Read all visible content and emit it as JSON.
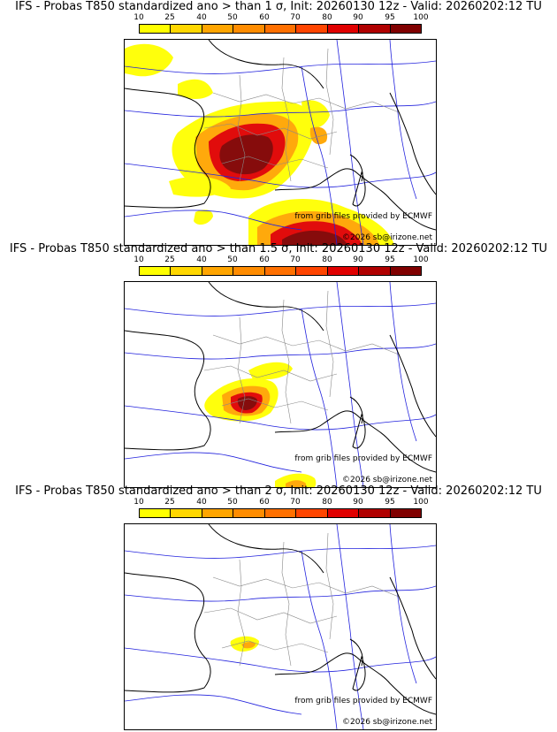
{
  "colorbar": {
    "ticks": [
      "10",
      "25",
      "40",
      "50",
      "60",
      "70",
      "80",
      "90",
      "95",
      "100"
    ],
    "colors": [
      "#ffff00",
      "#ffd700",
      "#ffa500",
      "#ff8c00",
      "#ff7000",
      "#ff4500",
      "#e00000",
      "#b00000",
      "#800000"
    ]
  },
  "panels": [
    {
      "title": "IFS - Probas T850  standardized ano > than 1 σ, Init: 20260130 12z - Valid: 20260202:12 TU",
      "credit": "from grib files provided by ECMWF",
      "copyright": "©2026 sb@irizone.net"
    },
    {
      "title": "IFS - Probas T850  standardized ano > than 1.5 σ, Init: 20260130 12z - Valid: 20260202:12 TU",
      "credit": "from grib files provided by ECMWF",
      "copyright": "©2026 sb@irizone.net"
    },
    {
      "title": "IFS - Probas T850  standardized ano > than 2 σ, Init: 20260130 12z - Valid: 20260202:12 TU",
      "credit": "from grib files provided by ECMWF",
      "copyright": "©2026 sb@irizone.net"
    }
  ]
}
